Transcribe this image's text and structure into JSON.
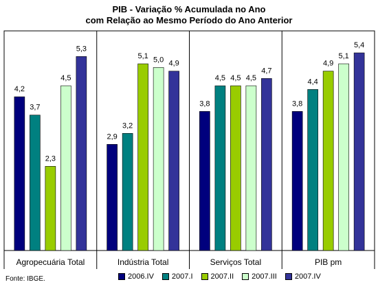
{
  "chart_data": {
    "type": "bar",
    "title": [
      "PIB - Variação % Acumulada no Ano",
      "com Relação ao Mesmo Período do Ano Anterior"
    ],
    "categories": [
      "Agropecuária Total",
      "Indústria Total",
      "Serviços Total",
      "PIB pm"
    ],
    "series": [
      {
        "name": "2006.IV",
        "color": "#00007d",
        "values": [
          4.2,
          2.9,
          3.8,
          3.8
        ],
        "labels": [
          "4,2",
          "2,9",
          "3,8",
          "3,8"
        ]
      },
      {
        "name": "2007.I",
        "color": "#008080",
        "values": [
          3.7,
          3.2,
          4.5,
          4.4
        ],
        "labels": [
          "3,7",
          "3,2",
          "4,5",
          "4,4"
        ]
      },
      {
        "name": "2007.II",
        "color": "#99cc00",
        "values": [
          2.3,
          5.1,
          4.5,
          4.9
        ],
        "labels": [
          "2,3",
          "5,1",
          "4,5",
          "4,9"
        ]
      },
      {
        "name": "2007.III",
        "color": "#ccffcc",
        "values": [
          4.5,
          5.0,
          4.5,
          5.1
        ],
        "labels": [
          "4,5",
          "5,0",
          "4,5",
          "5,1"
        ]
      },
      {
        "name": "2007.IV",
        "color": "#333399",
        "values": [
          5.3,
          4.9,
          4.7,
          5.4
        ],
        "labels": [
          "5,3",
          "4,9",
          "4,7",
          "5,4"
        ]
      }
    ],
    "ylim": [
      0,
      6
    ],
    "grid": false,
    "legend": "bottom-right",
    "source": "Fonte: IBGE."
  }
}
